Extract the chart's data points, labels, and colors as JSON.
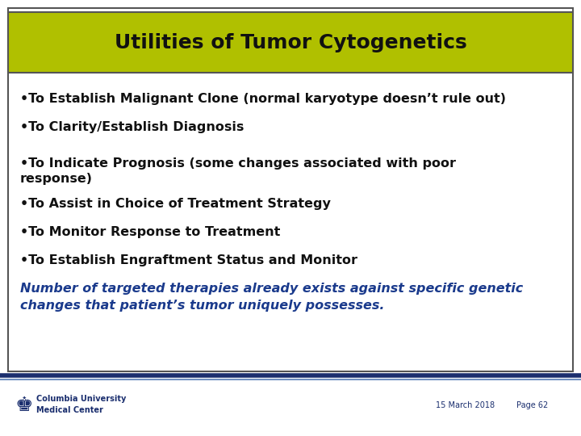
{
  "title": "Utilities of Tumor Cytogenetics",
  "title_bg_color": "#b0c000",
  "title_text_color": "#111111",
  "title_font_size": 18,
  "slide_bg_color": "#ffffff",
  "outer_border_color": "#555555",
  "bullet_items": [
    "•To Establish Malignant Clone (normal karyotype doesn’t rule out)",
    "•To Clarity/Establish Diagnosis",
    "•To Indicate Prognosis (some changes associated with poor\nresponse)",
    "•To Assist in Choice of Treatment Strategy",
    "•To Monitor Response to Treatment",
    "•To Establish Engraftment Status and Monitor"
  ],
  "bullet_color": "#111111",
  "bullet_font_size": 11.5,
  "highlight_text": "Number of targeted therapies already exists against specific genetic\nchanges that patient’s tumor uniquely possesses.",
  "highlight_color": "#1a3a8c",
  "highlight_font_size": 11.5,
  "footer_left_line1": "Columbia University",
  "footer_left_line2": "Medical Center",
  "footer_right_date": "15 March 2018",
  "footer_right_page": "Page 62",
  "footer_color": "#1a2e6e",
  "footer_font_size": 7,
  "separator_color_dark": "#1a2e6e",
  "separator_color_light": "#7090c0"
}
